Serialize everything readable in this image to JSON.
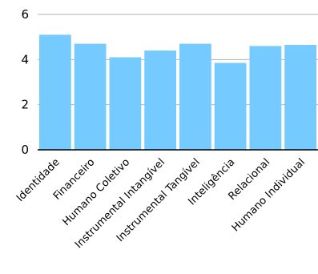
{
  "chart_data": {
    "type": "bar",
    "title": "",
    "xlabel": "",
    "ylabel": "",
    "categories": [
      "Identidade",
      "Financeiro",
      "Humano Coletivo",
      "Instrumental Intangível",
      "Instrumental Tangível",
      "Inteligência",
      "Relacional",
      "Humano Individual"
    ],
    "values": [
      5.1,
      4.7,
      4.1,
      4.4,
      4.7,
      3.85,
      4.6,
      4.65
    ],
    "ylim": [
      0,
      6
    ],
    "yticks": [
      0,
      2,
      4,
      6
    ],
    "grid": true,
    "legend": "none",
    "colors": {
      "bar": "#75caff",
      "grid": "#b3b3b3",
      "axis": "#000000"
    }
  }
}
